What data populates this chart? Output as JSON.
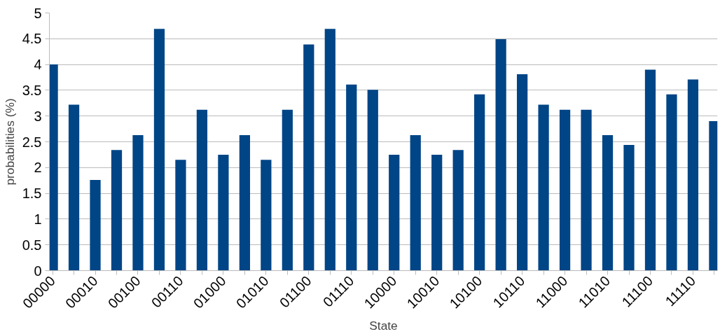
{
  "chart_data": {
    "type": "bar",
    "xlabel": "State",
    "ylabel": "probabilities (%)",
    "categories": [
      "00000",
      null,
      "00010",
      null,
      "00100",
      null,
      "00110",
      null,
      "01000",
      null,
      "01010",
      null,
      "01100",
      null,
      "01110",
      null,
      "10000",
      null,
      "10010",
      null,
      "10100",
      null,
      "10110",
      null,
      "11000",
      null,
      "11010",
      null,
      "11100",
      null,
      "11110",
      null
    ],
    "values": [
      4.0,
      3.22,
      1.76,
      2.34,
      2.63,
      4.69,
      2.15,
      3.12,
      2.25,
      2.63,
      2.15,
      3.12,
      4.39,
      4.69,
      3.61,
      3.51,
      2.25,
      2.63,
      2.25,
      2.34,
      3.42,
      4.49,
      3.81,
      3.22,
      3.12,
      3.12,
      2.63,
      2.44,
      3.9,
      3.42,
      3.71,
      2.9
    ],
    "color": "#004586",
    "ylim": [
      0,
      5
    ],
    "yticks": [
      0,
      0.5,
      1,
      1.5,
      2,
      2.5,
      3,
      3.5,
      4,
      4.5,
      5
    ],
    "grid": "y"
  }
}
